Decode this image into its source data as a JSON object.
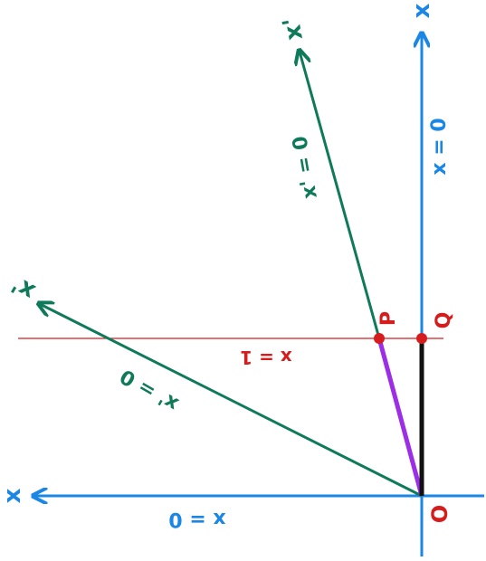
{
  "colors": {
    "blue": "#1a86e6",
    "green": "#0e7a5a",
    "red": "#d51d1d",
    "purple": "#9b2ee6",
    "black": "#111111"
  },
  "axes": {
    "vertical_axis_label": "x",
    "vertical_axis_eq": "x = 0",
    "horizontal_axis_label": "x",
    "horizontal_axis_eq": "x = 0"
  },
  "rotated_axes": {
    "steep_axis_label": "x'",
    "steep_axis_eq": "x' = 0",
    "shallow_axis_label": "x'",
    "shallow_axis_eq": "x' = 0"
  },
  "line": {
    "label": "x = 1"
  },
  "points": {
    "origin": "O",
    "p": "P",
    "q": "Q"
  }
}
